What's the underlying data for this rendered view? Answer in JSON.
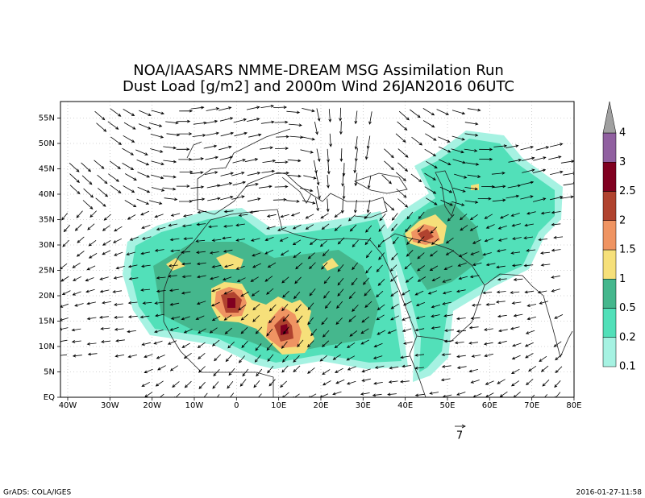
{
  "title": [
    "NOA/IAASARS NMME-DREAM MSG Assimilation Run",
    "Dust Load [g/m2] and 2000m Wind 26JAN2016 06UTC"
  ],
  "lat_labels": [
    "EQ",
    "5N",
    "10N",
    "15N",
    "20N",
    "25N",
    "30N",
    "35N",
    "40N",
    "45N",
    "50N",
    "55N"
  ],
  "lon_labels": [
    "40W",
    "30W",
    "20W",
    "10W",
    "0",
    "10E",
    "20E",
    "30E",
    "40E",
    "50E",
    "60E",
    "70E",
    "80E"
  ],
  "colorbar": {
    "levels": [
      0.1,
      0.2,
      0.5,
      1,
      1.5,
      2,
      2.5,
      3,
      4
    ]
  },
  "wind_reference": 7,
  "footer": {
    "left": "GrADS: COLA/IGES",
    "right": "2016-01-27-11:58"
  }
}
